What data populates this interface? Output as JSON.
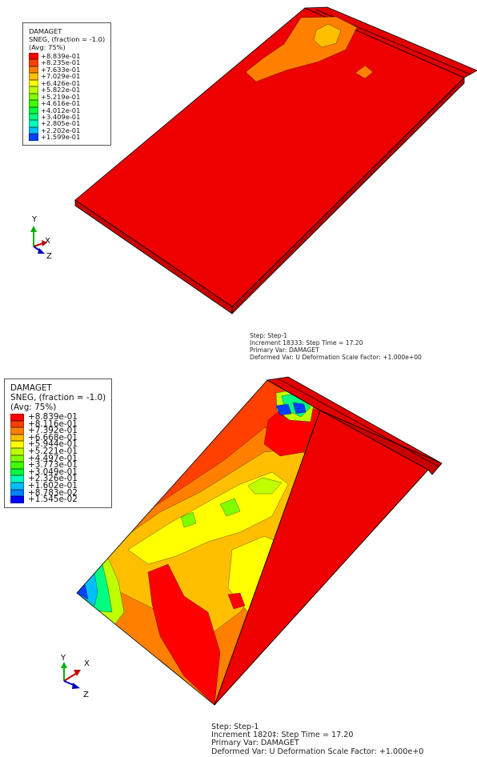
{
  "panels": [
    {
      "legend": {
        "title": "DAMAGET",
        "subtitle": "SNEG, (fraction = -1.0)",
        "avg": "(Avg: 75%)",
        "levels": [
          {
            "label": "+8.839e-01",
            "color": "#ff0000"
          },
          {
            "label": "+8.235e-01",
            "color": "#ff4000"
          },
          {
            "label": "+7.633e-01",
            "color": "#ff8000"
          },
          {
            "label": "+7.029e-01",
            "color": "#ffbf00"
          },
          {
            "label": "+6.426e-01",
            "color": "#ffff00"
          },
          {
            "label": "+5.822e-01",
            "color": "#bfff00"
          },
          {
            "label": "+5.219e-01",
            "color": "#80ff00"
          },
          {
            "label": "+4.616e-01",
            "color": "#40ff00"
          },
          {
            "label": "+4.012e-01",
            "color": "#00ff40"
          },
          {
            "label": "+3.409e-01",
            "color": "#00ff80"
          },
          {
            "label": "+2.805e-01",
            "color": "#00ffbf"
          },
          {
            "label": "+2.202e-01",
            "color": "#00bfff"
          },
          {
            "label": "+1.599e-01",
            "color": "#0040ff"
          }
        ]
      },
      "triad": {
        "y": "Y",
        "x": "X",
        "z": "Z"
      },
      "status": {
        "step": "Step: Step-1",
        "increment": "Increment     18333: Step Time =     17.20",
        "primary": "Primary Var: DAMAGET",
        "deformed": "Deformed Var: U   Deformation Scale Factor: +1.000e+00"
      }
    },
    {
      "legend": {
        "title": "DAMAGET",
        "subtitle": "SNEG, (fraction = -1.0)",
        "avg": "(Avg: 75%)",
        "levels": [
          {
            "label": "+8.839e-01",
            "color": "#ff0000"
          },
          {
            "label": "+8.116e-01",
            "color": "#ff4000"
          },
          {
            "label": "+7.392e-01",
            "color": "#ff8000"
          },
          {
            "label": "+6.668e-01",
            "color": "#ffbf00"
          },
          {
            "label": "+5.944e-01",
            "color": "#ffff00"
          },
          {
            "label": "+5.221e-01",
            "color": "#bfff00"
          },
          {
            "label": "+4.497e-01",
            "color": "#80ff00"
          },
          {
            "label": "+3.773e-01",
            "color": "#40ff00"
          },
          {
            "label": "+3.049e-01",
            "color": "#00ff40"
          },
          {
            "label": "+2.326e-01",
            "color": "#00ffbf"
          },
          {
            "label": "+1.602e-01",
            "color": "#00bfff"
          },
          {
            "label": "+8.783e-02",
            "color": "#0080ff"
          },
          {
            "label": "+1.545e-02",
            "color": "#0000ff"
          }
        ]
      },
      "triad": {
        "y": "Y",
        "x": "X",
        "z": "Z"
      },
      "status": {
        "step": "Step: Step-1",
        "increment": "Increment     1820‡: Step Time =     17.20",
        "primary": "Primary Var: DAMAGET",
        "deformed": "Deformed Var: U   Deformation Scale Factor: +1.000e+0"
      }
    }
  ]
}
